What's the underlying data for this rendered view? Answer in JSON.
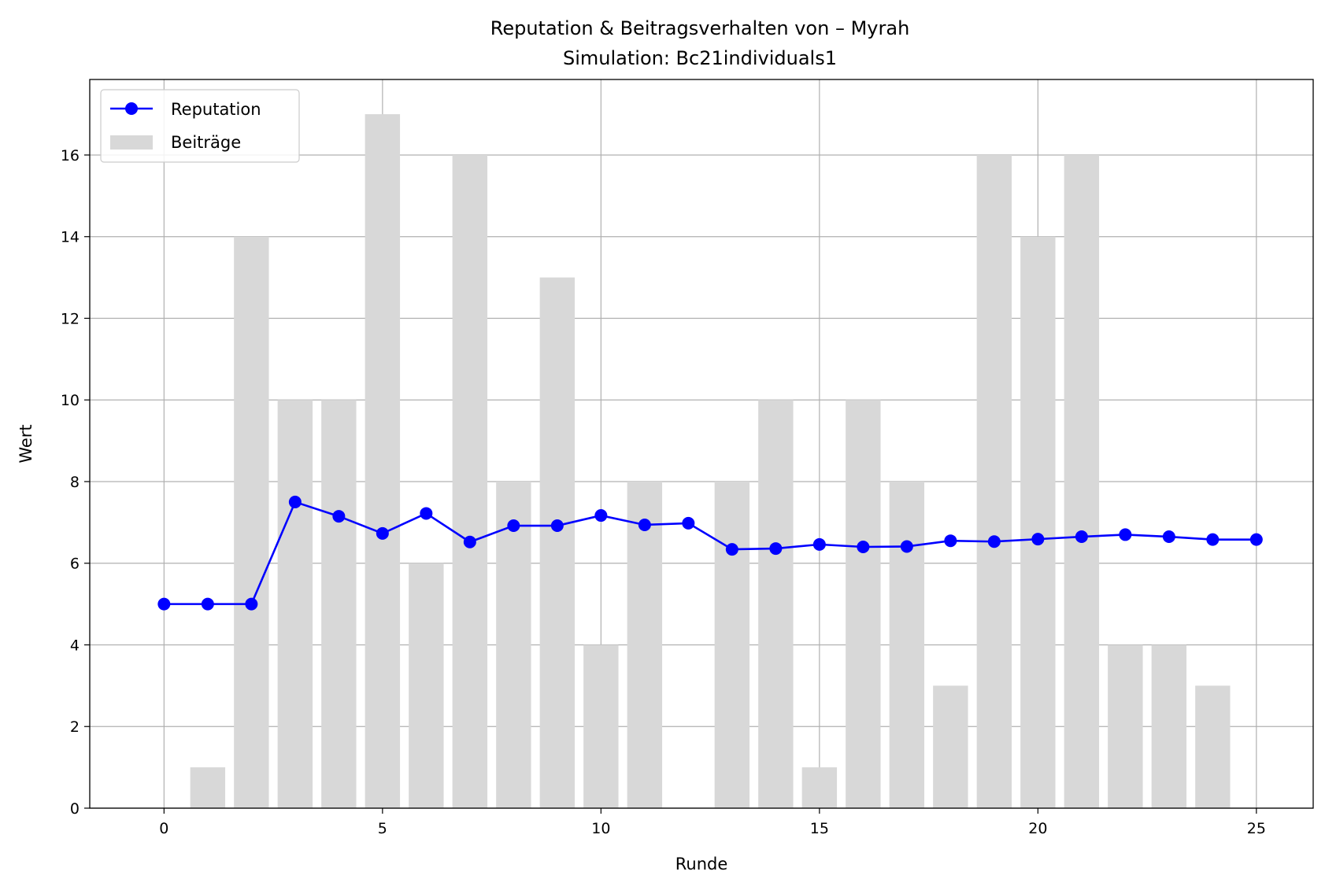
{
  "chart_data": {
    "type": "line",
    "title": "Reputation & Beitragsverhalten von – Myrah",
    "subtitle": "Simulation: Bc21individuals1",
    "xlabel": "Runde",
    "ylabel": "Wert",
    "xlim": [
      -1.7,
      26.3
    ],
    "ylim": [
      0,
      17.85
    ],
    "xticks": [
      0,
      5,
      10,
      15,
      20,
      25
    ],
    "yticks": [
      0,
      2,
      4,
      6,
      8,
      10,
      12,
      14,
      16
    ],
    "grid": true,
    "legend_position": "top-left",
    "series": [
      {
        "name": "Reputation",
        "kind": "line",
        "color": "#0000ff",
        "marker": "circle",
        "x": [
          0,
          1,
          2,
          3,
          4,
          5,
          6,
          7,
          8,
          9,
          10,
          11,
          12,
          13,
          14,
          15,
          16,
          17,
          18,
          19,
          20,
          21,
          22,
          23,
          24,
          25
        ],
        "values": [
          5.0,
          5.0,
          5.0,
          7.5,
          7.15,
          6.73,
          7.22,
          6.52,
          6.92,
          6.92,
          7.17,
          6.94,
          6.98,
          6.34,
          6.36,
          6.46,
          6.4,
          6.41,
          6.55,
          6.53,
          6.59,
          6.65,
          6.7,
          6.65,
          6.58,
          6.58
        ]
      },
      {
        "name": "Beiträge",
        "kind": "bar",
        "color": "#d8d8d8",
        "x": [
          0,
          1,
          2,
          3,
          4,
          5,
          6,
          7,
          8,
          9,
          10,
          11,
          12,
          13,
          14,
          15,
          16,
          17,
          18,
          19,
          20,
          21,
          22,
          23,
          24,
          25
        ],
        "values": [
          0,
          1,
          14,
          10,
          10,
          17,
          6,
          16,
          8,
          13,
          4,
          8,
          0,
          8,
          10,
          1,
          10,
          8,
          3,
          16,
          14,
          16,
          4,
          4,
          3,
          0
        ]
      }
    ]
  }
}
